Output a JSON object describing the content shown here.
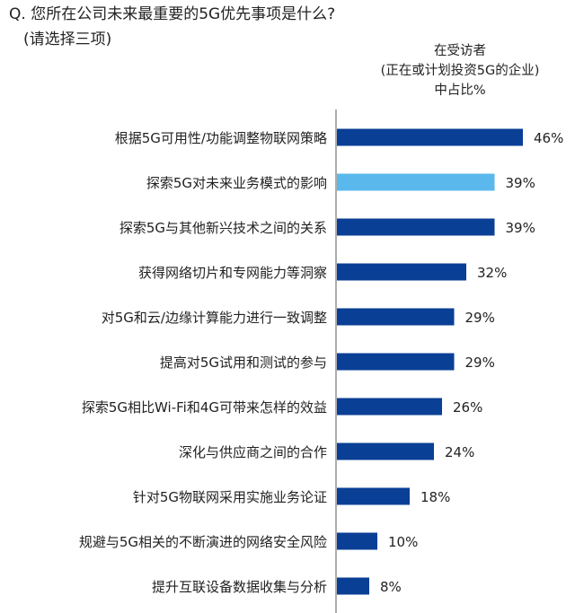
{
  "question": {
    "title": "Q. 您所在公司未来最重要的5G优先事项是什么?",
    "subtitle": "(请选择三项)"
  },
  "column_header": {
    "line1": "在受访者",
    "line2": "(正在或计划投资5G的企业)",
    "line3": "中占比%"
  },
  "colors": {
    "bar": "#0a3f96",
    "highlight_bar": "#5ab8ec",
    "axis": "#777777"
  },
  "chart_data": {
    "type": "bar",
    "orientation": "horizontal",
    "categories": [
      "根据5G可用性/功能调整物联网策略",
      "探索5G对未来业务模式的影响",
      "探索5G与其他新兴技术之间的关系",
      "获得网络切片和专网能力等洞察",
      "对5G和云/边缘计算能力进行一致调整",
      "提高对5G试用和测试的参与",
      "探索5G相比Wi-Fi和4G可带来怎样的效益",
      "深化与供应商之间的合作",
      "针对5G物联网采用实施业务论证",
      "规避与5G相关的不断演进的网络安全风险",
      "提升互联设备数据收集与分析"
    ],
    "values": [
      46,
      39,
      39,
      32,
      29,
      29,
      26,
      24,
      18,
      10,
      8
    ],
    "value_labels": [
      "46%",
      "39%",
      "39%",
      "32%",
      "29%",
      "29%",
      "26%",
      "24%",
      "18%",
      "10%",
      "8%"
    ],
    "highlight_index": 1,
    "xlim": [
      0,
      46
    ],
    "grid": false
  }
}
